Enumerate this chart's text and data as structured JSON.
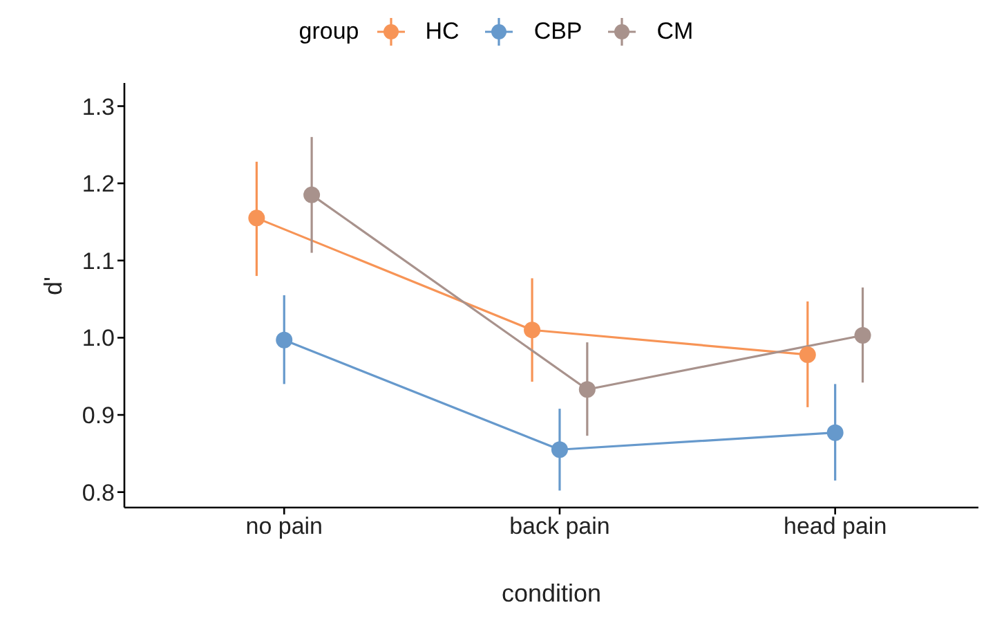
{
  "chart_data": {
    "type": "line",
    "xlabel": "condition",
    "ylabel": "d'",
    "legend_title": "group",
    "legend": "top",
    "categories": [
      "no pain",
      "back pain",
      "head pain"
    ],
    "ylim": [
      0.78,
      1.33
    ],
    "yticks": [
      0.8,
      0.9,
      {
        "value": 1,
        "label": "1.0"
      },
      1.1,
      1.2,
      1.3
    ],
    "grid": false,
    "marker": "circle",
    "series": [
      {
        "name": "HC",
        "color": "#f79456",
        "values": [
          1.155,
          1.01,
          0.978
        ],
        "errors": [
          [
            1.08,
            1.228
          ],
          [
            0.943,
            1.077
          ],
          [
            0.91,
            1.047
          ]
        ]
      },
      {
        "name": "CBP",
        "color": "#6699cc",
        "values": [
          0.997,
          0.855,
          0.877
        ],
        "errors": [
          [
            0.94,
            1.055
          ],
          [
            0.802,
            0.908
          ],
          [
            0.815,
            0.94
          ]
        ]
      },
      {
        "name": "CM",
        "color": "#a8928c",
        "values": [
          1.185,
          0.933,
          1.003
        ],
        "errors": [
          [
            1.11,
            1.26
          ],
          [
            0.873,
            0.994
          ],
          [
            0.942,
            1.065
          ]
        ]
      }
    ]
  }
}
